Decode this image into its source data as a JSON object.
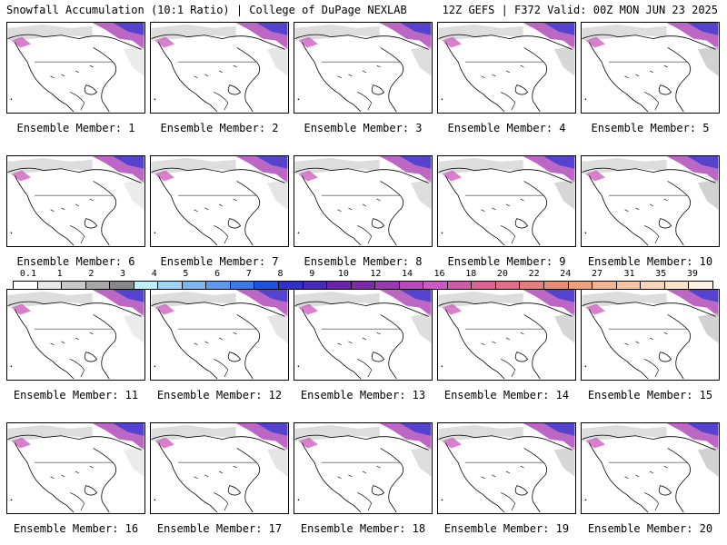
{
  "header": {
    "title_left": "Snowfall Accumulation (10:1 Ratio) | College of DuPage NEXLAB",
    "title_right": "12Z GEFS | F372 Valid: 00Z MON JUN 23 2025"
  },
  "legend": {
    "labels": [
      "0.1",
      "1",
      "2",
      "3",
      "4",
      "5",
      "6",
      "7",
      "8",
      "9",
      "10",
      "12",
      "14",
      "16",
      "18",
      "20",
      "22",
      "24",
      "27",
      "31",
      "35",
      "39"
    ],
    "colors": [
      "#ffffff",
      "#e8e8e8",
      "#c8c8c8",
      "#a8a8a8",
      "#888888",
      "#bff0f8",
      "#9cd6f4",
      "#7cb8f0",
      "#5c98ec",
      "#3c78e8",
      "#1c52e0",
      "#3030c8",
      "#4a28b8",
      "#6a22ac",
      "#7c2aa8",
      "#9a38b2",
      "#b848bc",
      "#cc58c6",
      "#d05aa8",
      "#dc6090",
      "#e06e88",
      "#e47c80",
      "#e88c78",
      "#eca07c",
      "#f0b490",
      "#f4c4a4",
      "#f8d4b8",
      "#fce4cc",
      "#fff2e4"
    ]
  },
  "panels": [
    {
      "caption": "Ensemble Member: 1"
    },
    {
      "caption": "Ensemble Member: 2"
    },
    {
      "caption": "Ensemble Member: 3"
    },
    {
      "caption": "Ensemble Member: 4"
    },
    {
      "caption": "Ensemble Member: 5"
    },
    {
      "caption": "Ensemble Member: 6"
    },
    {
      "caption": "Ensemble Member: 7"
    },
    {
      "caption": "Ensemble Member: 8"
    },
    {
      "caption": "Ensemble Member: 9"
    },
    {
      "caption": "Ensemble Member: 10"
    },
    {
      "caption": "Ensemble Member: 11"
    },
    {
      "caption": "Ensemble Member: 12"
    },
    {
      "caption": "Ensemble Member: 13"
    },
    {
      "caption": "Ensemble Member: 14"
    },
    {
      "caption": "Ensemble Member: 15"
    },
    {
      "caption": "Ensemble Member: 16"
    },
    {
      "caption": "Ensemble Member: 17"
    },
    {
      "caption": "Ensemble Member: 18"
    },
    {
      "caption": "Ensemble Member: 19"
    },
    {
      "caption": "Ensemble Member: 20"
    }
  ]
}
